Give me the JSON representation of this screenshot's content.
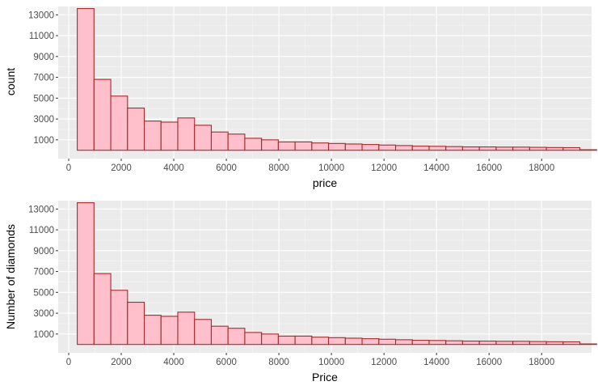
{
  "chart_data": [
    {
      "type": "bar",
      "histogram": true,
      "xlabel": "price",
      "ylabel": "count",
      "xlim": [
        -400,
        19900
      ],
      "ylim": [
        -800,
        13800
      ],
      "x_ticks": [
        0,
        2000,
        4000,
        6000,
        8000,
        10000,
        12000,
        14000,
        16000,
        18000
      ],
      "y_ticks": [
        1000,
        3000,
        5000,
        7000,
        9000,
        11000,
        13000
      ],
      "bin_start": 326,
      "bin_width": 637.7,
      "values": [
        13600,
        6800,
        5200,
        4050,
        2800,
        2700,
        3100,
        2400,
        1750,
        1550,
        1150,
        1000,
        800,
        800,
        700,
        650,
        600,
        550,
        500,
        450,
        400,
        380,
        350,
        320,
        320,
        300,
        300,
        280,
        260,
        250,
        50
      ],
      "fill": "#FFC0CB",
      "stroke": "#A52A2A",
      "grid": true
    },
    {
      "type": "bar",
      "histogram": true,
      "xlabel": "Price",
      "ylabel": "Number of diamonds",
      "xlim": [
        -400,
        19900
      ],
      "ylim": [
        -800,
        13800
      ],
      "x_ticks": [
        0,
        2000,
        4000,
        6000,
        8000,
        10000,
        12000,
        14000,
        16000,
        18000
      ],
      "y_ticks": [
        1000,
        3000,
        5000,
        7000,
        9000,
        11000,
        13000
      ],
      "bin_start": 326,
      "bin_width": 637.7,
      "values": [
        13600,
        6800,
        5200,
        4050,
        2800,
        2700,
        3100,
        2400,
        1750,
        1550,
        1150,
        1000,
        800,
        800,
        700,
        650,
        600,
        550,
        500,
        450,
        400,
        380,
        350,
        320,
        320,
        300,
        300,
        280,
        260,
        250,
        50
      ],
      "fill": "#FFC0CB",
      "stroke": "#A52A2A",
      "grid": true
    }
  ]
}
